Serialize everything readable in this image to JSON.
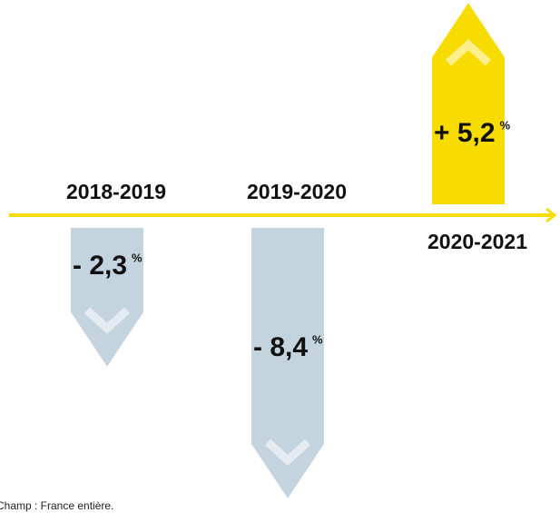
{
  "chart_data": {
    "type": "bar",
    "categories": [
      "2018-2019",
      "2019-2020",
      "2020-2021"
    ],
    "values": [
      -2.3,
      -8.4,
      5.2
    ],
    "value_labels": [
      "- 2,3",
      "- 8,4",
      "+ 5,2"
    ],
    "unit": "%",
    "colors": {
      "negative": "#c4d4df",
      "positive": "#f8dc00",
      "axis": "#f8dc00"
    },
    "note": "Champ : France entière."
  }
}
